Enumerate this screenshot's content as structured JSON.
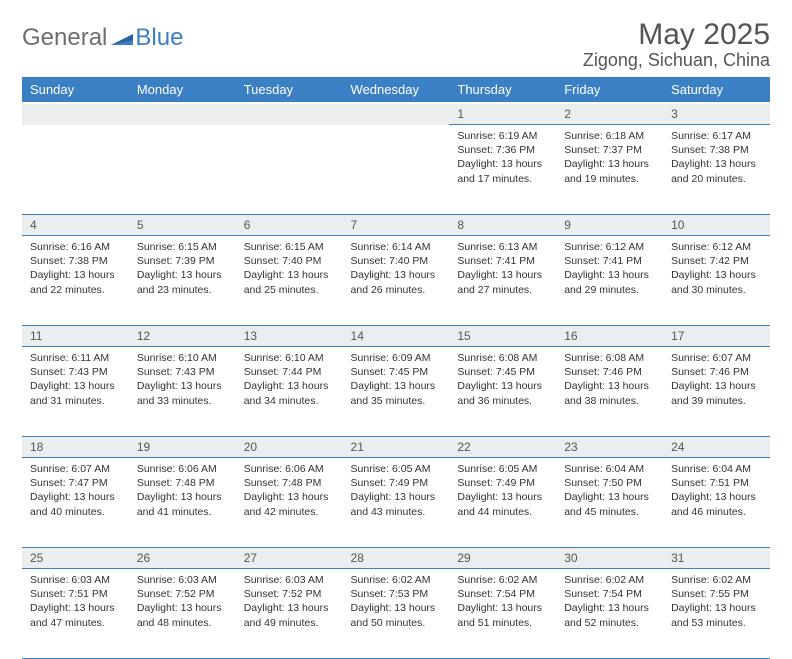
{
  "brand": {
    "part1": "General",
    "part2": "Blue"
  },
  "title": "May 2025",
  "location": "Zigong, Sichuan, China",
  "colors": {
    "accent": "#3b7fc4",
    "daynum_bg": "#ebedef",
    "text": "#333333",
    "header_text": "#ffffff"
  },
  "weekdays": [
    "Sunday",
    "Monday",
    "Tuesday",
    "Wednesday",
    "Thursday",
    "Friday",
    "Saturday"
  ],
  "weeks": [
    [
      null,
      null,
      null,
      null,
      {
        "n": "1",
        "sr": "6:19 AM",
        "ss": "7:36 PM",
        "dl": "13 hours and 17 minutes."
      },
      {
        "n": "2",
        "sr": "6:18 AM",
        "ss": "7:37 PM",
        "dl": "13 hours and 19 minutes."
      },
      {
        "n": "3",
        "sr": "6:17 AM",
        "ss": "7:38 PM",
        "dl": "13 hours and 20 minutes."
      }
    ],
    [
      {
        "n": "4",
        "sr": "6:16 AM",
        "ss": "7:38 PM",
        "dl": "13 hours and 22 minutes."
      },
      {
        "n": "5",
        "sr": "6:15 AM",
        "ss": "7:39 PM",
        "dl": "13 hours and 23 minutes."
      },
      {
        "n": "6",
        "sr": "6:15 AM",
        "ss": "7:40 PM",
        "dl": "13 hours and 25 minutes."
      },
      {
        "n": "7",
        "sr": "6:14 AM",
        "ss": "7:40 PM",
        "dl": "13 hours and 26 minutes."
      },
      {
        "n": "8",
        "sr": "6:13 AM",
        "ss": "7:41 PM",
        "dl": "13 hours and 27 minutes."
      },
      {
        "n": "9",
        "sr": "6:12 AM",
        "ss": "7:41 PM",
        "dl": "13 hours and 29 minutes."
      },
      {
        "n": "10",
        "sr": "6:12 AM",
        "ss": "7:42 PM",
        "dl": "13 hours and 30 minutes."
      }
    ],
    [
      {
        "n": "11",
        "sr": "6:11 AM",
        "ss": "7:43 PM",
        "dl": "13 hours and 31 minutes."
      },
      {
        "n": "12",
        "sr": "6:10 AM",
        "ss": "7:43 PM",
        "dl": "13 hours and 33 minutes."
      },
      {
        "n": "13",
        "sr": "6:10 AM",
        "ss": "7:44 PM",
        "dl": "13 hours and 34 minutes."
      },
      {
        "n": "14",
        "sr": "6:09 AM",
        "ss": "7:45 PM",
        "dl": "13 hours and 35 minutes."
      },
      {
        "n": "15",
        "sr": "6:08 AM",
        "ss": "7:45 PM",
        "dl": "13 hours and 36 minutes."
      },
      {
        "n": "16",
        "sr": "6:08 AM",
        "ss": "7:46 PM",
        "dl": "13 hours and 38 minutes."
      },
      {
        "n": "17",
        "sr": "6:07 AM",
        "ss": "7:46 PM",
        "dl": "13 hours and 39 minutes."
      }
    ],
    [
      {
        "n": "18",
        "sr": "6:07 AM",
        "ss": "7:47 PM",
        "dl": "13 hours and 40 minutes."
      },
      {
        "n": "19",
        "sr": "6:06 AM",
        "ss": "7:48 PM",
        "dl": "13 hours and 41 minutes."
      },
      {
        "n": "20",
        "sr": "6:06 AM",
        "ss": "7:48 PM",
        "dl": "13 hours and 42 minutes."
      },
      {
        "n": "21",
        "sr": "6:05 AM",
        "ss": "7:49 PM",
        "dl": "13 hours and 43 minutes."
      },
      {
        "n": "22",
        "sr": "6:05 AM",
        "ss": "7:49 PM",
        "dl": "13 hours and 44 minutes."
      },
      {
        "n": "23",
        "sr": "6:04 AM",
        "ss": "7:50 PM",
        "dl": "13 hours and 45 minutes."
      },
      {
        "n": "24",
        "sr": "6:04 AM",
        "ss": "7:51 PM",
        "dl": "13 hours and 46 minutes."
      }
    ],
    [
      {
        "n": "25",
        "sr": "6:03 AM",
        "ss": "7:51 PM",
        "dl": "13 hours and 47 minutes."
      },
      {
        "n": "26",
        "sr": "6:03 AM",
        "ss": "7:52 PM",
        "dl": "13 hours and 48 minutes."
      },
      {
        "n": "27",
        "sr": "6:03 AM",
        "ss": "7:52 PM",
        "dl": "13 hours and 49 minutes."
      },
      {
        "n": "28",
        "sr": "6:02 AM",
        "ss": "7:53 PM",
        "dl": "13 hours and 50 minutes."
      },
      {
        "n": "29",
        "sr": "6:02 AM",
        "ss": "7:54 PM",
        "dl": "13 hours and 51 minutes."
      },
      {
        "n": "30",
        "sr": "6:02 AM",
        "ss": "7:54 PM",
        "dl": "13 hours and 52 minutes."
      },
      {
        "n": "31",
        "sr": "6:02 AM",
        "ss": "7:55 PM",
        "dl": "13 hours and 53 minutes."
      }
    ]
  ],
  "labels": {
    "sunrise": "Sunrise:",
    "sunset": "Sunset:",
    "daylight": "Daylight:"
  }
}
